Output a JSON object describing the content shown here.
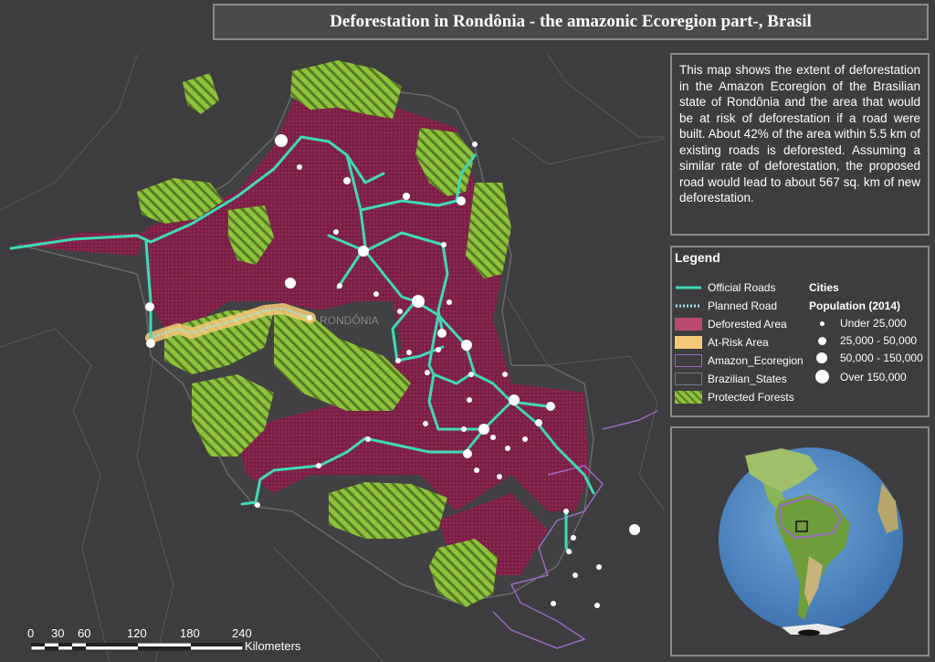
{
  "title": "Deforestation in Rondônia - the amazonic Ecoregion part-, Brasil",
  "description": "This map shows the extent of deforestation in the Amazon Ecoregion of the Brasilian state of Rondônia and the area that would be at risk of deforestation if a road were built. About 42% of the area within 5.5 km of existing roads is deforested. Assuming a similar rate of deforestation, the proposed road would lead to about 567 sq. km of new deforestation.",
  "map_label": "RONDÔNIA",
  "legend": {
    "title": "Legend",
    "items": [
      {
        "label": "Official Roads",
        "color": "#3fd9b8"
      },
      {
        "label": "Planned Road",
        "color": "#9fe6e6"
      },
      {
        "label": "Deforested Area",
        "color": "#b84a6e"
      },
      {
        "label": "At-Risk Area",
        "color": "#f6c978"
      },
      {
        "label": "Amazon_Ecoregion",
        "color": "#9a6ac8"
      },
      {
        "label": "Brazilian_States",
        "color": "#3d3d3f"
      },
      {
        "label": "Protected Forests",
        "color": "#9acd32"
      }
    ],
    "cities_title": "Cities",
    "population_title": "Population (2014)",
    "population_classes": [
      "Under 25,000",
      "25,000 - 50,000",
      "50,000 - 150,000",
      "Over 150,000"
    ]
  },
  "scale": {
    "labels": [
      "0",
      "30",
      "60",
      "120",
      "180",
      "240"
    ],
    "unit": "Kilometers"
  },
  "colors": {
    "background": "#3d3d3f",
    "deforested": "#7a1f45",
    "protected": "#8cc43a",
    "roads": "#3fd9b8",
    "ecoregion": "#9a6ac8"
  }
}
